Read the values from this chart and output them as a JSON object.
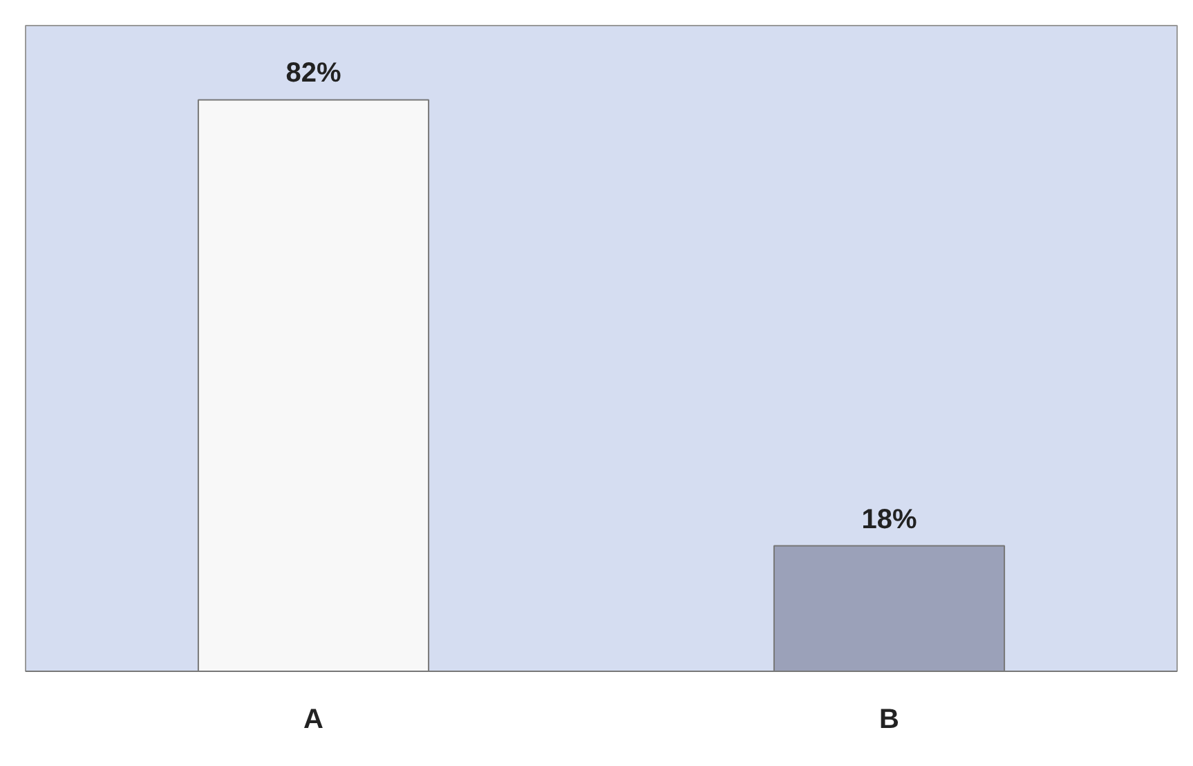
{
  "chart_data": {
    "type": "bar",
    "categories": [
      "A",
      "B"
    ],
    "values": [
      82,
      18
    ],
    "colors": [
      "#f8f8f8",
      "#9ba1b9"
    ],
    "value_labels": [
      "82%",
      "18%"
    ],
    "grid": false
  }
}
